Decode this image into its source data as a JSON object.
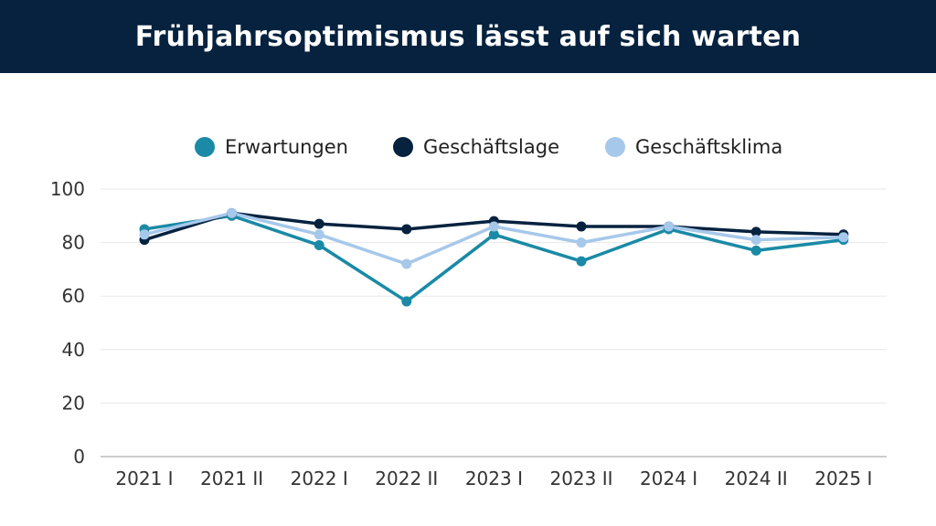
{
  "header": {
    "title": "Frühjahrsoptimismus lässt auf sich warten"
  },
  "colors": {
    "header_bg": "#06223f",
    "grid": "#e8e8e8",
    "axis": "#999999"
  },
  "chart_data": {
    "type": "line",
    "title": "Frühjahrsoptimismus lässt auf sich warten",
    "categories": [
      "2021 I",
      "2021 II",
      "2022 I",
      "2022 II",
      "2023 I",
      "2023 II",
      "2024 I",
      "2024 II",
      "2025 I"
    ],
    "ylim": [
      0,
      100
    ],
    "yticks": [
      0,
      20,
      40,
      60,
      80,
      100
    ],
    "grid": true,
    "legend": "top",
    "series": [
      {
        "name": "Erwartungen",
        "color": "#1a8aa6",
        "values": [
          85,
          90,
          79,
          58,
          83,
          73,
          85,
          77,
          81
        ]
      },
      {
        "name": "Geschäftslage",
        "color": "#06223f",
        "values": [
          81,
          91,
          87,
          85,
          88,
          86,
          86,
          84,
          83
        ]
      },
      {
        "name": "Geschäftsklima",
        "color": "#a6c8ea",
        "values": [
          83,
          91,
          83,
          72,
          86,
          80,
          86,
          81,
          82
        ]
      }
    ]
  }
}
